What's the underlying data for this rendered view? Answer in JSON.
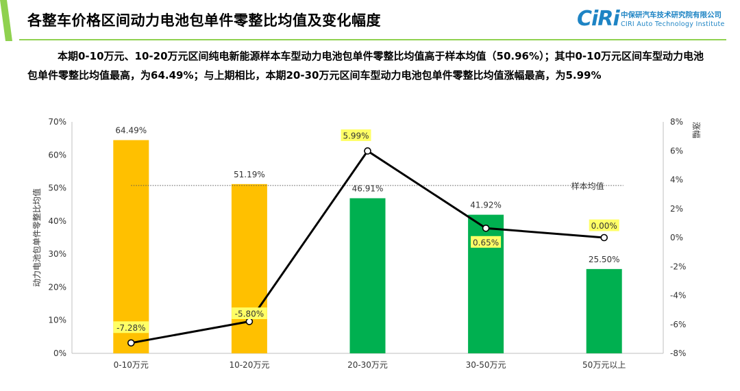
{
  "slide": {
    "title": "各整车价格区间动力电池包单件零整比均值及变化幅度",
    "logo_mark": "CiRi",
    "logo_org": "中保研汽车技术研究院有限公司",
    "logo_eng": "CIRI Auto Technology Institute",
    "summary": "本期0-10万元、10-20万元区间纯电新能源样本车型动力电池包单件零整比均值高于样本均值（50.96%）；其中0-10万元区间车型动力电池包单件零整比均值最高，为64.49%；与上期相比，本期20-30万元区间车型动力电池包单件零整比均值涨幅最高，为5.99%",
    "colors": {
      "accent_green": "#8fd14f",
      "logo_blue": "#1e84c4"
    }
  },
  "chart_data": {
    "type": "bar",
    "categories": [
      "0-10万元",
      "10-20万元",
      "20-30万元",
      "30-50万元",
      "50万元以上"
    ],
    "series": [
      {
        "type": "bar",
        "values": [
          64.49,
          51.19,
          46.91,
          41.92,
          25.5
        ],
        "labels": [
          "64.49%",
          "51.19%",
          "46.91%",
          "41.92%",
          "25.50%"
        ],
        "colors": [
          "#ffc000",
          "#ffc000",
          "#00b050",
          "#00b050",
          "#00b050"
        ],
        "axis": "left"
      },
      {
        "type": "line",
        "values": [
          -7.28,
          -5.8,
          5.99,
          0.65,
          0.0
        ],
        "labels": [
          "-7.28%",
          "-5.80%",
          "5.99%",
          "0.65%",
          "0.00%"
        ],
        "color": "#000000",
        "label_highlight": "#ffff66",
        "axis": "right"
      }
    ],
    "reference_line": {
      "label": "样本均值",
      "value": 50.96,
      "axis": "left"
    },
    "y_left": {
      "label": "动力电池包单件零整比均值",
      "range": [
        0,
        70
      ],
      "ticks": [
        0,
        10,
        20,
        30,
        40,
        50,
        60,
        70
      ],
      "tick_labels": [
        "0%",
        "10%",
        "20%",
        "30%",
        "40%",
        "50%",
        "60%",
        "70%"
      ]
    },
    "y_right": {
      "label": "涨幅",
      "range": [
        -8,
        8
      ],
      "ticks": [
        -8,
        -6,
        -4,
        -2,
        0,
        2,
        4,
        6,
        8
      ],
      "tick_labels": [
        "-8%",
        "-6%",
        "-4%",
        "-2%",
        "0%",
        "2%",
        "4%",
        "6%",
        "8%"
      ]
    },
    "grid": false,
    "legend": "none"
  }
}
